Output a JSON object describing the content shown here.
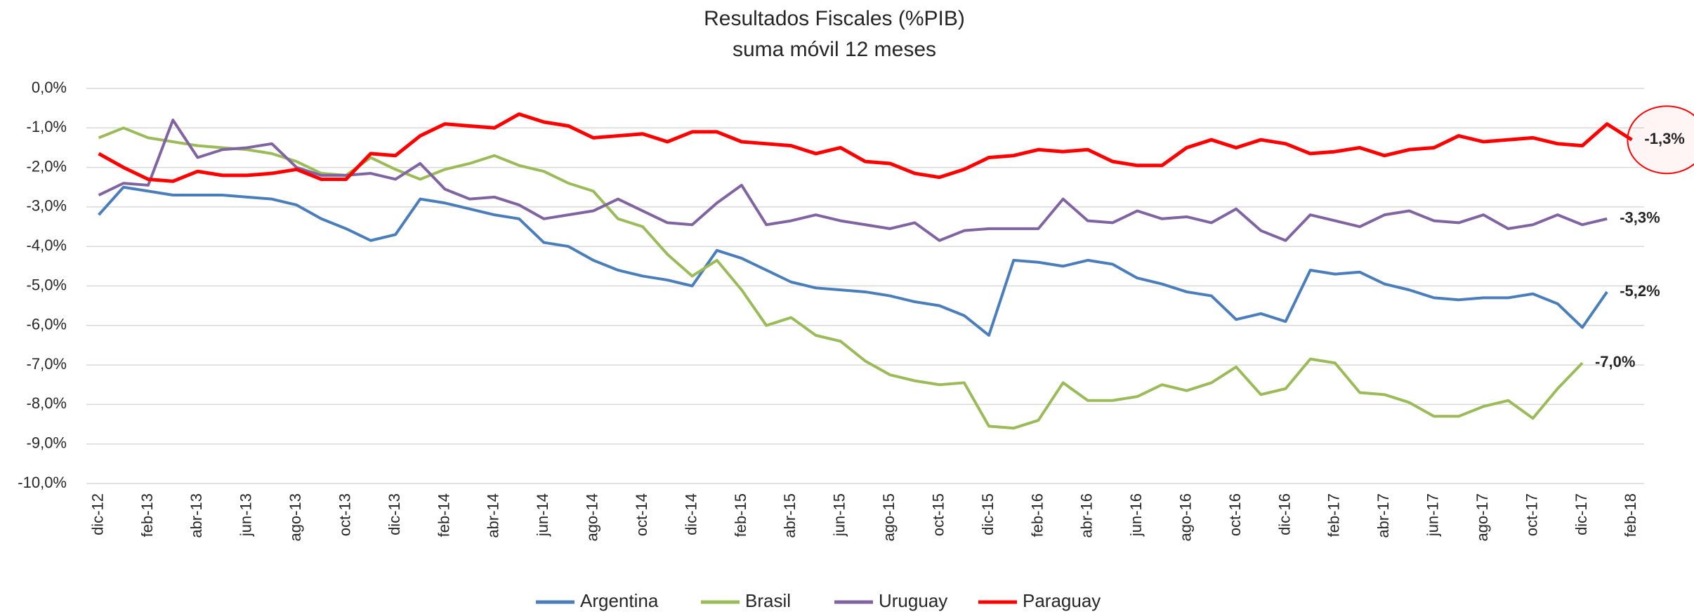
{
  "chart_data": {
    "type": "line",
    "title": "Resultados Fiscales (%PIB)",
    "subtitle": "suma móvil 12 meses",
    "categories": [
      "dic-12",
      null,
      "feb-13",
      null,
      "abr-13",
      null,
      "jun-13",
      null,
      "ago-13",
      null,
      "oct-13",
      null,
      "dic-13",
      null,
      "feb-14",
      null,
      "abr-14",
      null,
      "jun-14",
      null,
      "ago-14",
      null,
      "oct-14",
      null,
      "dic-14",
      null,
      "feb-15",
      null,
      "abr-15",
      null,
      "jun-15",
      null,
      "ago-15",
      null,
      "oct-15",
      null,
      "dic-15",
      null,
      "feb-16",
      null,
      "abr-16",
      null,
      "jun-16",
      null,
      "ago-16",
      null,
      "oct-16",
      null,
      "dic-16",
      null,
      "feb-17",
      null,
      "abr-17",
      null,
      "jun-17",
      null,
      "ago-17",
      null,
      "oct-17",
      null,
      "dic-17",
      null,
      "feb-18"
    ],
    "series": [
      {
        "name": "Argentina",
        "color": "#4a7ebb",
        "values": [
          -3.2,
          -2.5,
          -2.6,
          -2.7,
          -2.7,
          -2.7,
          -2.75,
          -2.8,
          -2.95,
          -3.3,
          -3.55,
          -3.85,
          -3.7,
          -2.8,
          -2.9,
          -3.05,
          -3.2,
          -3.3,
          -3.9,
          -4.0,
          -4.35,
          -4.6,
          -4.75,
          -4.85,
          -5.0,
          -4.1,
          -4.3,
          -4.6,
          -4.9,
          -5.05,
          -5.1,
          -5.15,
          -5.25,
          -5.4,
          -5.5,
          -5.75,
          -6.25,
          -4.35,
          -4.4,
          -4.5,
          -4.35,
          -4.45,
          -4.8,
          -4.95,
          -5.15,
          -5.25,
          -5.85,
          -5.7,
          -5.9,
          -4.6,
          -4.7,
          -4.65,
          -4.95,
          -5.1,
          -5.3,
          -5.35,
          -5.3,
          -5.3,
          -5.2,
          -5.45,
          -6.05,
          -5.15,
          null
        ],
        "value_labels": [
          null,
          null,
          null,
          null,
          null,
          null,
          null,
          null,
          null,
          null,
          null,
          null,
          null,
          null,
          null,
          null,
          null,
          null,
          null,
          null,
          null,
          null,
          null,
          null,
          null,
          null,
          null,
          null,
          null,
          null,
          null,
          null,
          null,
          null,
          null,
          null,
          null,
          null,
          null,
          null,
          null,
          null,
          null,
          null,
          null,
          null,
          null,
          null,
          null,
          null,
          null,
          null,
          null,
          null,
          null,
          null,
          null,
          null,
          null,
          null,
          null,
          "-5,2%",
          null
        ]
      },
      {
        "name": "Brasil",
        "color": "#9bbb59",
        "values": [
          -1.25,
          -1.0,
          -1.25,
          -1.35,
          -1.45,
          -1.5,
          -1.55,
          -1.65,
          -1.85,
          -2.15,
          -2.2,
          -1.75,
          -2.05,
          -2.3,
          -2.05,
          -1.9,
          -1.7,
          -1.95,
          -2.1,
          -2.4,
          -2.6,
          -3.3,
          -3.5,
          -4.2,
          -4.75,
          -4.35,
          -5.1,
          -6.0,
          -5.8,
          -6.25,
          -6.4,
          -6.9,
          -7.25,
          -7.4,
          -7.5,
          -7.45,
          -8.55,
          -8.6,
          -8.4,
          -7.45,
          -7.9,
          -7.9,
          -7.8,
          -7.5,
          -7.65,
          -7.45,
          -7.05,
          -7.75,
          -7.6,
          -6.85,
          -6.95,
          -7.7,
          -7.75,
          -7.95,
          -8.3,
          -8.3,
          -8.05,
          -7.9,
          -8.35,
          -7.6,
          -6.95,
          null,
          null
        ],
        "value_labels": [
          null,
          null,
          null,
          null,
          null,
          null,
          null,
          null,
          null,
          null,
          null,
          null,
          null,
          null,
          null,
          null,
          null,
          null,
          null,
          null,
          null,
          null,
          null,
          null,
          null,
          null,
          null,
          null,
          null,
          null,
          null,
          null,
          null,
          null,
          null,
          null,
          null,
          null,
          null,
          null,
          null,
          null,
          null,
          null,
          null,
          null,
          null,
          null,
          null,
          null,
          null,
          null,
          null,
          null,
          null,
          null,
          null,
          null,
          null,
          null,
          "-7,0%",
          null,
          null
        ]
      },
      {
        "name": "Uruguay",
        "color": "#8064a2",
        "values": [
          -2.7,
          -2.4,
          -2.45,
          -0.8,
          -1.75,
          -1.55,
          -1.5,
          -1.4,
          -2.0,
          -2.2,
          -2.2,
          -2.15,
          -2.3,
          -1.9,
          -2.55,
          -2.8,
          -2.75,
          -2.95,
          -3.3,
          -3.2,
          -3.1,
          -2.8,
          -3.1,
          -3.4,
          -3.45,
          -2.9,
          -2.45,
          -3.45,
          -3.35,
          -3.2,
          -3.35,
          -3.45,
          -3.55,
          -3.4,
          -3.85,
          -3.6,
          -3.55,
          -3.55,
          -3.55,
          -2.8,
          -3.35,
          -3.4,
          -3.1,
          -3.3,
          -3.25,
          -3.4,
          -3.05,
          -3.6,
          -3.85,
          -3.2,
          -3.35,
          -3.5,
          -3.2,
          -3.1,
          -3.35,
          -3.4,
          -3.2,
          -3.55,
          -3.45,
          -3.2,
          -3.45,
          -3.3,
          null
        ],
        "value_labels": [
          null,
          null,
          null,
          null,
          null,
          null,
          null,
          null,
          null,
          null,
          null,
          null,
          null,
          null,
          null,
          null,
          null,
          null,
          null,
          null,
          null,
          null,
          null,
          null,
          null,
          null,
          null,
          null,
          null,
          null,
          null,
          null,
          null,
          null,
          null,
          null,
          null,
          null,
          null,
          null,
          null,
          null,
          null,
          null,
          null,
          null,
          null,
          null,
          null,
          null,
          null,
          null,
          null,
          null,
          null,
          null,
          null,
          null,
          null,
          null,
          null,
          "-3,3%",
          null
        ]
      },
      {
        "name": "Paraguay",
        "color": "#ff0000",
        "values": [
          -1.65,
          -2.0,
          -2.3,
          -2.35,
          -2.1,
          -2.2,
          -2.2,
          -2.15,
          -2.05,
          -2.3,
          -2.3,
          -1.65,
          -1.7,
          -1.2,
          -0.9,
          -0.95,
          -1.0,
          -0.65,
          -0.85,
          -0.95,
          -1.25,
          -1.2,
          -1.15,
          -1.35,
          -1.1,
          -1.1,
          -1.35,
          -1.4,
          -1.45,
          -1.65,
          -1.5,
          -1.85,
          -1.9,
          -2.15,
          -2.25,
          -2.05,
          -1.75,
          -1.7,
          -1.55,
          -1.6,
          -1.55,
          -1.85,
          -1.95,
          -1.95,
          -1.5,
          -1.3,
          -1.5,
          -1.3,
          -1.4,
          -1.65,
          -1.6,
          -1.5,
          -1.7,
          -1.55,
          -1.5,
          -1.2,
          -1.35,
          -1.3,
          -1.25,
          -1.4,
          -1.45,
          -0.9,
          -1.3
        ],
        "value_labels": [
          null,
          null,
          null,
          null,
          null,
          null,
          null,
          null,
          null,
          null,
          null,
          null,
          null,
          null,
          null,
          null,
          null,
          null,
          null,
          null,
          null,
          null,
          null,
          null,
          null,
          null,
          null,
          null,
          null,
          null,
          null,
          null,
          null,
          null,
          null,
          null,
          null,
          null,
          null,
          null,
          null,
          null,
          null,
          null,
          null,
          null,
          null,
          null,
          null,
          null,
          null,
          null,
          null,
          null,
          null,
          null,
          null,
          null,
          null,
          null,
          null,
          null,
          "-1,3%"
        ]
      }
    ],
    "ylim": [
      -10,
      0
    ],
    "yticks": [
      {
        "value": 0,
        "label": "0,0%"
      },
      {
        "value": -1,
        "label": "-1,0%"
      },
      {
        "value": -2,
        "label": "-2,0%"
      },
      {
        "value": -3,
        "label": "-3,0%"
      },
      {
        "value": -4,
        "label": "-4,0%"
      },
      {
        "value": -5,
        "label": "-5,0%"
      },
      {
        "value": -6,
        "label": "-6,0%"
      },
      {
        "value": -7,
        "label": "-7,0%"
      },
      {
        "value": -8,
        "label": "-8,0%"
      },
      {
        "value": -9,
        "label": "-9,0%"
      },
      {
        "value": -10,
        "label": "-10,0%"
      }
    ],
    "grid": true,
    "legend": "bottom"
  }
}
